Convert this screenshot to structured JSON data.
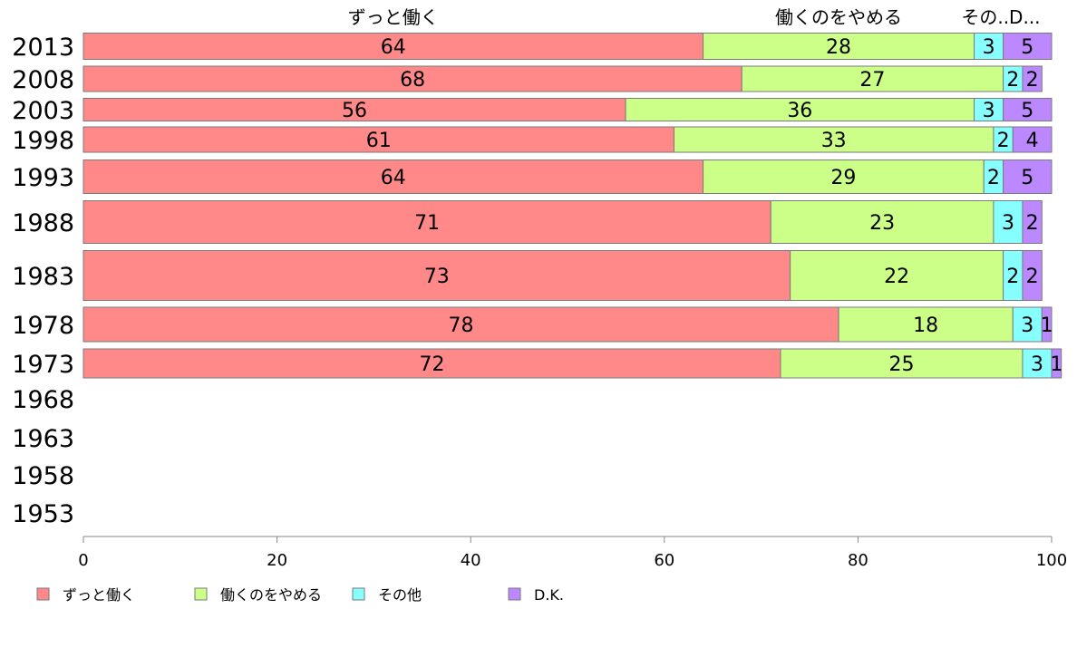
{
  "chart_data": {
    "type": "bar",
    "orientation": "horizontal",
    "stacked": true,
    "categories": [
      "2013",
      "2008",
      "2003",
      "1998",
      "1993",
      "1988",
      "1983",
      "1978",
      "1973",
      "1968",
      "1963",
      "1958",
      "1953"
    ],
    "series": [
      {
        "name": "ずっと働く",
        "color": "#ff8888",
        "values": [
          64,
          68,
          56,
          61,
          64,
          71,
          73,
          78,
          72,
          null,
          null,
          null,
          null
        ]
      },
      {
        "name": "働くのをやめる",
        "color": "#ccff88",
        "values": [
          28,
          27,
          36,
          33,
          29,
          23,
          22,
          18,
          25,
          null,
          null,
          null,
          null
        ]
      },
      {
        "name": "その他",
        "color": "#88ffff",
        "values": [
          3,
          2,
          3,
          2,
          2,
          3,
          2,
          3,
          3,
          null,
          null,
          null,
          null
        ]
      },
      {
        "name": "D.K.",
        "color": "#bb88ff",
        "values": [
          5,
          2,
          5,
          4,
          5,
          2,
          2,
          1,
          1,
          null,
          null,
          null,
          null
        ]
      }
    ],
    "top_labels": [
      "ずっと働く",
      "働くのをやめる",
      "その..D..."
    ],
    "xlim": [
      0,
      100
    ],
    "xticks": [
      0,
      20,
      40,
      60,
      80,
      100
    ],
    "legend_position": "bottom-left",
    "grid": false
  }
}
